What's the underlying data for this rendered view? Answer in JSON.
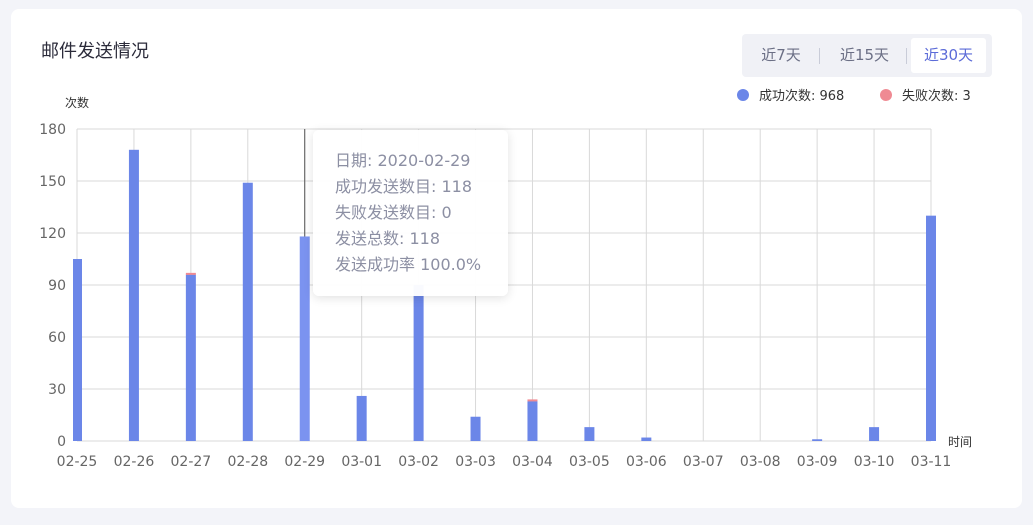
{
  "panel": {
    "title": "邮件发送情况",
    "ranges": [
      "近7天",
      "近15天",
      "近30天"
    ],
    "active_range": "近30天"
  },
  "legend": {
    "success": "成功次数: 968",
    "fail": "失败次数: 3"
  },
  "colors": {
    "success": "#6b86e8",
    "fail": "#ef8a93"
  },
  "tooltip": {
    "date": "日期: 2020-02-29",
    "success": "成功发送数目: 118",
    "fail": "失败发送数目: 0",
    "total": "发送总数: 118",
    "rate": "发送成功率 100.0%"
  },
  "chart_data": {
    "type": "bar",
    "stacked": true,
    "ylabel": "次数",
    "xlabel": "时间",
    "ylim": [
      0,
      180
    ],
    "yticks": [
      0,
      30,
      60,
      90,
      120,
      150,
      180
    ],
    "grid": true,
    "legend_position": "top-right",
    "categories": [
      "02-25",
      "02-26",
      "02-27",
      "02-28",
      "02-29",
      "03-01",
      "03-02",
      "03-03",
      "03-04",
      "03-05",
      "03-06",
      "03-07",
      "03-08",
      "03-09",
      "03-10",
      "03-11"
    ],
    "series": [
      {
        "name": "成功次数",
        "values": [
          105,
          168,
          96,
          149,
          118,
          26,
          90,
          14,
          23,
          8,
          2,
          0,
          0,
          1,
          8,
          130
        ]
      },
      {
        "name": "失败次数",
        "values": [
          0,
          0,
          1,
          0,
          0,
          0,
          0,
          0,
          1,
          0,
          0,
          0,
          0,
          0,
          0,
          0
        ]
      }
    ]
  }
}
